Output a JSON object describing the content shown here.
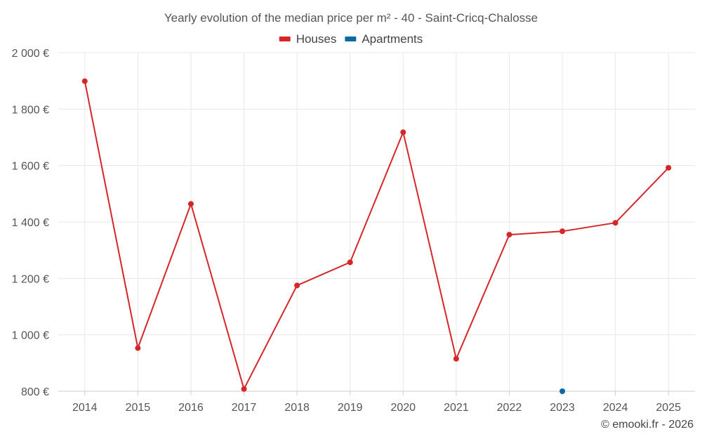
{
  "chart_data": {
    "type": "line",
    "title": "Yearly evolution of the median price per m² - 40 - Saint-Cricq-Chalosse",
    "categories": [
      "2014",
      "2015",
      "2016",
      "2017",
      "2018",
      "2019",
      "2020",
      "2021",
      "2022",
      "2023",
      "2024",
      "2025"
    ],
    "series": [
      {
        "name": "Houses",
        "color": "#d62728",
        "values": [
          1899,
          953,
          1464,
          808,
          1175,
          1257,
          1718,
          915,
          1355,
          1367,
          1397,
          1592
        ]
      },
      {
        "name": "Apartments",
        "color": "#0b6aa2",
        "values": [
          null,
          null,
          null,
          null,
          null,
          null,
          null,
          null,
          null,
          800,
          null,
          null
        ]
      }
    ],
    "ylim": [
      800,
      2000
    ],
    "yticks": [
      800,
      1000,
      1200,
      1400,
      1600,
      1800,
      2000
    ],
    "ytick_labels": [
      "800 €",
      "1 000 €",
      "1 200 €",
      "1 400 €",
      "1 600 €",
      "1 800 €",
      "2 000 €"
    ],
    "xlabel": "",
    "ylabel": "",
    "grid": true,
    "legend_position": "top-center"
  },
  "credit": "© emooki.fr - 2026"
}
